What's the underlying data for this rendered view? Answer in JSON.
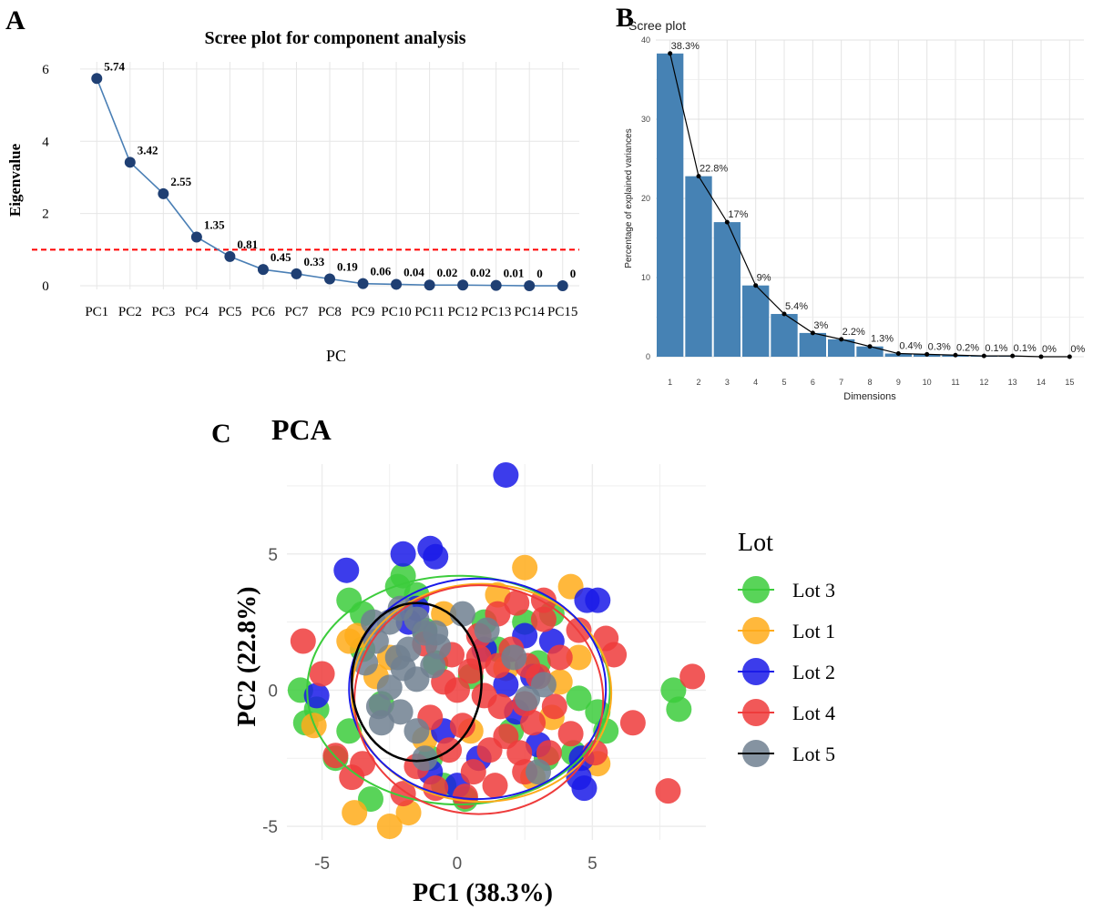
{
  "panel_letters": {
    "a": "A",
    "b": "B",
    "c": "C"
  },
  "chart_data": [
    {
      "type": "line",
      "title": "Scree plot for component analysis",
      "xlabel": "PC",
      "ylabel": "Eigenvalue",
      "categories": [
        "PC1",
        "PC2",
        "PC3",
        "PC4",
        "PC5",
        "PC6",
        "PC7",
        "PC8",
        "PC9",
        "PC10",
        "PC11",
        "PC12",
        "PC13",
        "PC14",
        "PC15"
      ],
      "values": [
        5.74,
        3.42,
        2.55,
        1.35,
        0.81,
        0.45,
        0.33,
        0.19,
        0.06,
        0.04,
        0.02,
        0.02,
        0.01,
        0,
        0
      ],
      "data_labels": [
        "5.74",
        "3.42",
        "2.55",
        "1.35",
        "0.81",
        "0.45",
        "0.33",
        "0.19",
        "0.06",
        "0.04",
        "0.02",
        "0.02",
        "0.01",
        "0",
        "0"
      ],
      "ylim": [
        -0.1,
        6.2
      ],
      "yticks": [
        0,
        2,
        4,
        6
      ],
      "reference_line": {
        "y": 1,
        "style": "dashed",
        "color": "#ff0000"
      },
      "line_color": "#4a7fb5",
      "point_color": "#1f3f73"
    },
    {
      "type": "bar",
      "title": "Scree plot",
      "xlabel": "Dimensions",
      "ylabel": "Percentage of explained variances",
      "categories": [
        "1",
        "2",
        "3",
        "4",
        "5",
        "6",
        "7",
        "8",
        "9",
        "10",
        "11",
        "12",
        "13",
        "14",
        "15"
      ],
      "values": [
        38.3,
        22.8,
        17,
        9,
        5.4,
        3,
        2.2,
        1.3,
        0.4,
        0.3,
        0.2,
        0.1,
        0.1,
        0,
        0
      ],
      "data_labels": [
        "38.3%",
        "22.8%",
        "17%",
        "9%",
        "5.4%",
        "3%",
        "2.2%",
        "1.3%",
        "0.4%",
        "0.3%",
        "0.2%",
        "0.1%",
        "0.1%",
        "0%",
        "0%"
      ],
      "ylim": [
        0,
        40
      ],
      "yticks": [
        0,
        10,
        20,
        30,
        40
      ],
      "bar_color": "#4682b4",
      "overlay_line": true
    },
    {
      "type": "scatter",
      "title": "PCA",
      "xlabel": "PC1 (38.3%)",
      "ylabel": "PC2 (22.8%)",
      "xlim": [
        -6.3,
        9.2
      ],
      "ylim": [
        -5.5,
        8.3
      ],
      "xticks": [
        -5,
        0,
        5
      ],
      "yticks": [
        -5,
        0,
        5
      ],
      "legend_title": "Lot",
      "legend_position": "right",
      "series": [
        {
          "name": "Lot 3",
          "color": "#3ccc3c",
          "points": [
            [
              -5.8,
              0
            ],
            [
              -5.6,
              -1.2
            ],
            [
              -5.2,
              -0.7
            ],
            [
              -4,
              3.3
            ],
            [
              -3.5,
              2.8
            ],
            [
              -3.2,
              -4
            ],
            [
              -2,
              4.2
            ],
            [
              -2.2,
              3.8
            ],
            [
              -1.5,
              3.5
            ],
            [
              -4.5,
              -2.5
            ],
            [
              -4,
              -1.5
            ],
            [
              -3.5,
              1.5
            ],
            [
              -2.8,
              -0.5
            ],
            [
              -1.2,
              2.2
            ],
            [
              -0.5,
              -3.5
            ],
            [
              0.3,
              -4
            ],
            [
              1,
              2.5
            ],
            [
              2.5,
              2.5
            ],
            [
              3.5,
              2.8
            ],
            [
              4.3,
              -2.3
            ],
            [
              3.3,
              -2.5
            ],
            [
              4.5,
              -0.3
            ],
            [
              5.2,
              -0.8
            ],
            [
              5.5,
              -1.5
            ],
            [
              8,
              0
            ],
            [
              8.2,
              -0.7
            ],
            [
              1.5,
              1.5
            ],
            [
              2,
              -1.5
            ],
            [
              0.5,
              0.5
            ],
            [
              -0.8,
              1
            ],
            [
              3,
              1
            ],
            [
              -1,
              -2.5
            ]
          ]
        },
        {
          "name": "Lot 1",
          "color": "#ffab1a",
          "points": [
            [
              2.5,
              4.5
            ],
            [
              4.2,
              3.8
            ],
            [
              -1.8,
              -4.5
            ],
            [
              -2.5,
              -5
            ],
            [
              -3.8,
              -4.5
            ],
            [
              -5.3,
              -1.3
            ],
            [
              -3.7,
              2
            ],
            [
              -4,
              1.8
            ],
            [
              4.5,
              1.2
            ],
            [
              1.5,
              3.5
            ],
            [
              -0.5,
              2.8
            ],
            [
              5.2,
              -2.7
            ],
            [
              0.5,
              -1.5
            ],
            [
              3.5,
              -1
            ],
            [
              -2.5,
              1.2
            ],
            [
              1.8,
              0.8
            ],
            [
              -1.2,
              -1.8
            ],
            [
              2.8,
              -3.2
            ],
            [
              3.8,
              0.3
            ],
            [
              -3,
              0.5
            ]
          ]
        },
        {
          "name": "Lot 2",
          "color": "#1a1ae8",
          "points": [
            [
              1.8,
              7.9
            ],
            [
              -4.1,
              4.4
            ],
            [
              -2,
              5
            ],
            [
              -1,
              5.2
            ],
            [
              -0.8,
              4.9
            ],
            [
              -5.2,
              -0.2
            ],
            [
              4.8,
              3.3
            ],
            [
              5.2,
              3.3
            ],
            [
              4.5,
              -3.2
            ],
            [
              4.7,
              -3.6
            ],
            [
              4.6,
              -2.5
            ],
            [
              3.5,
              1.8
            ],
            [
              2.8,
              0.5
            ],
            [
              1.8,
              0.2
            ],
            [
              -1.5,
              3
            ],
            [
              -1.8,
              2.5
            ],
            [
              -0.5,
              -1.5
            ],
            [
              0.8,
              -2.5
            ],
            [
              0,
              -3.5
            ],
            [
              -1,
              -3
            ],
            [
              3,
              -2
            ],
            [
              2.2,
              -0.8
            ],
            [
              1,
              1.5
            ],
            [
              2.5,
              2
            ]
          ]
        },
        {
          "name": "Lot 4",
          "color": "#ee3b3b",
          "points": [
            [
              -5.7,
              1.8
            ],
            [
              -5,
              0.6
            ],
            [
              -4.5,
              -2.4
            ],
            [
              -3.9,
              -3.2
            ],
            [
              -3.5,
              -2.7
            ],
            [
              8.7,
              0.5
            ],
            [
              7.8,
              -3.7
            ],
            [
              5.5,
              1.9
            ],
            [
              5.8,
              1.3
            ],
            [
              6.5,
              -1.2
            ],
            [
              5.1,
              -2.3
            ],
            [
              0,
              0
            ],
            [
              0.5,
              0.7
            ],
            [
              1,
              -0.2
            ],
            [
              1.5,
              0.9
            ],
            [
              2,
              1.5
            ],
            [
              2.5,
              -0.5
            ],
            [
              3,
              0.5
            ],
            [
              -0.5,
              0.3
            ],
            [
              0.2,
              -1.3
            ],
            [
              1.8,
              -1.7
            ],
            [
              2.8,
              -1.2
            ],
            [
              -0.2,
              1.3
            ],
            [
              0.8,
              2
            ],
            [
              1.5,
              2.8
            ],
            [
              2.2,
              3.2
            ],
            [
              3.2,
              2.6
            ],
            [
              3.8,
              1.2
            ],
            [
              -1,
              -1
            ],
            [
              -0.3,
              -2.2
            ],
            [
              0.6,
              -3
            ],
            [
              1.4,
              -3.5
            ],
            [
              2.5,
              -3
            ],
            [
              3.4,
              -2.3
            ],
            [
              -1.5,
              -2.8
            ],
            [
              -0.8,
              -3.6
            ],
            [
              0.3,
              -3.9
            ],
            [
              1.2,
              -2.2
            ],
            [
              2.3,
              -2.3
            ],
            [
              3.6,
              -0.6
            ],
            [
              4.2,
              -1.6
            ],
            [
              4.5,
              2.2
            ],
            [
              0.8,
              1.2
            ],
            [
              1.6,
              -0.6
            ],
            [
              2.6,
              0.9
            ],
            [
              -2,
              -3.8
            ],
            [
              -1.2,
              1.7
            ],
            [
              3.2,
              3.3
            ]
          ]
        },
        {
          "name": "Lot 5",
          "color": "#708090",
          "points": [
            [
              -3,
              1.8
            ],
            [
              -2.5,
              2.5
            ],
            [
              -2,
              0.8
            ],
            [
              -1.8,
              1.5
            ],
            [
              -1.2,
              2.1
            ],
            [
              -2.5,
              0.1
            ],
            [
              -2.9,
              -0.6
            ],
            [
              -1.5,
              0.4
            ],
            [
              -0.9,
              0.9
            ],
            [
              -2.1,
              -0.8
            ],
            [
              -1.5,
              -1.5
            ],
            [
              -2.8,
              -1.2
            ],
            [
              -2.1,
              3
            ],
            [
              -1.5,
              2.6
            ],
            [
              -0.8,
              2.1
            ],
            [
              -3.4,
              1
            ],
            [
              -3.1,
              2.5
            ],
            [
              -0.7,
              1.6
            ],
            [
              1.1,
              2.2
            ],
            [
              2.1,
              1.2
            ],
            [
              2.6,
              -0.3
            ],
            [
              3,
              -3
            ],
            [
              -1.2,
              -2.5
            ],
            [
              0.2,
              2.8
            ],
            [
              3.2,
              0.2
            ],
            [
              -2.2,
              1.2
            ]
          ]
        }
      ],
      "ellipses": [
        {
          "name": "Lot 3",
          "cx": 0.05,
          "cy": 0,
          "rx": 5.6,
          "ry": 4.2,
          "color": "#3ccc3c"
        },
        {
          "name": "Lot 1",
          "cx": 0.9,
          "cy": -0.1,
          "rx": 4.8,
          "ry": 4.0,
          "color": "#ffab1a"
        },
        {
          "name": "Lot 2",
          "cx": 0.75,
          "cy": 0.05,
          "rx": 4.75,
          "ry": 4.05,
          "color": "#1a1ae8"
        },
        {
          "name": "Lot 4",
          "cx": 0.8,
          "cy": -0.35,
          "rx": 4.6,
          "ry": 4.2,
          "color": "#ee3b3b"
        },
        {
          "name": "Lot 5",
          "cx": -1.5,
          "cy": 0.3,
          "rx": 2.4,
          "ry": 2.9,
          "color": "#000000"
        }
      ],
      "legend_order": [
        "Lot 3",
        "Lot 1",
        "Lot 2",
        "Lot 4",
        "Lot 5"
      ],
      "legend_line_colors": {
        "Lot 3": "#3ccc3c",
        "Lot 1": "#ffab1a",
        "Lot 2": "#1a1ae8",
        "Lot 4": "#ee3b3b",
        "Lot 5": "#000000"
      }
    }
  ]
}
